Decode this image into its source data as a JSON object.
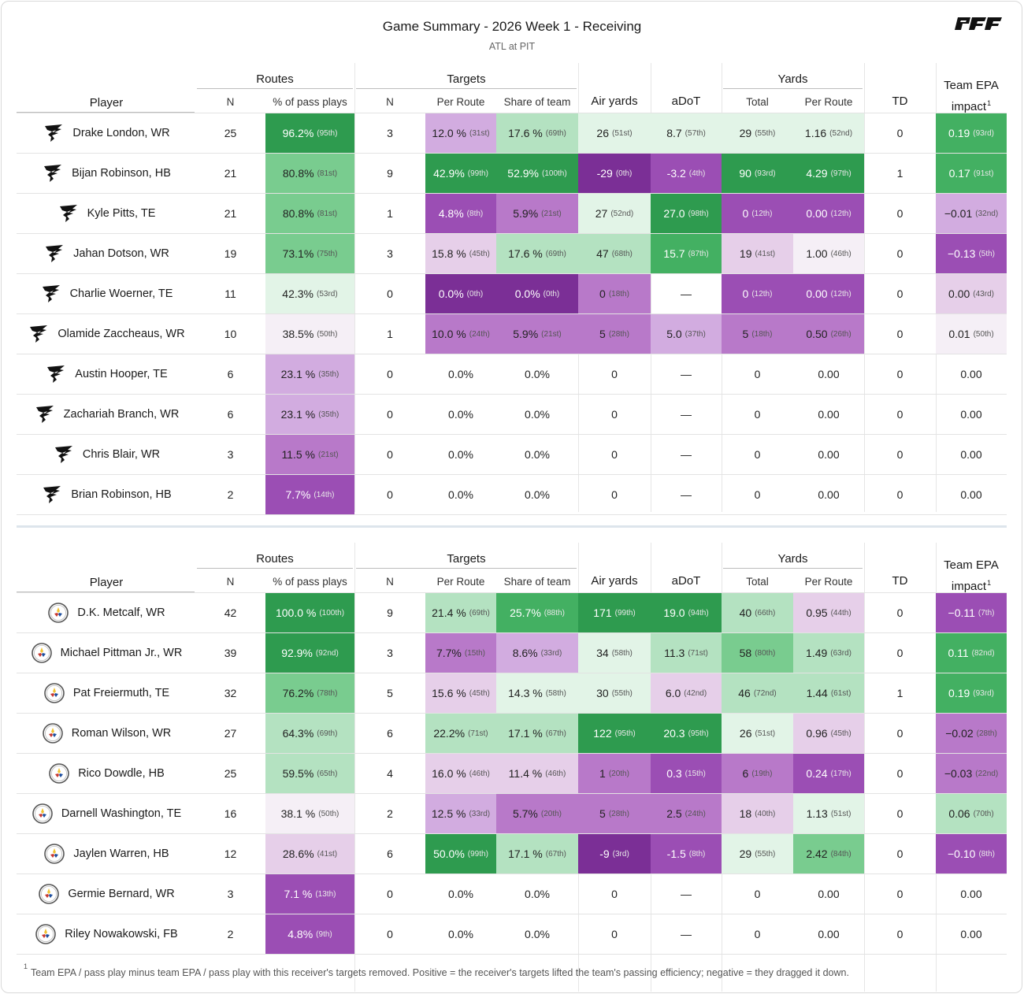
{
  "title": "Game Summary - 2026 Week 1 - Receiving",
  "subtitle": "ATL at PIT",
  "brand": "PFF",
  "headers": {
    "player": "Player",
    "routes": "Routes",
    "targets": "Targets",
    "yards": "Yards",
    "n": "N",
    "pct_pass_plays": "% of pass plays",
    "per_route": "Per Route",
    "share_of_team": "Share of team",
    "air_yards": "Air yards",
    "adot": "aDoT",
    "total": "Total",
    "td": "TD",
    "team_epa_line1": "Team EPA",
    "team_epa_line2": "impact",
    "footnote_mark": "1"
  },
  "colors": {
    "g4": "#2e9b4f",
    "g3": "#43b062",
    "g2": "#79cc8f",
    "g1": "#b4e2c1",
    "g0": "#e2f4e7",
    "n": "#f5eff6",
    "p0": "#e6cfe9",
    "p1": "#d2ace0",
    "p2": "#b879c9",
    "p3": "#9b4eb4",
    "p4": "#7b2f96"
  },
  "tables": [
    {
      "team": "ATL",
      "rows": [
        {
          "player": "Drake London, WR",
          "routes_n": "25",
          "routes_pct": {
            "v": "96.2%",
            "r": "(95th)",
            "c": "g4"
          },
          "targets_n": "3",
          "per_route": {
            "v": "12.0 %",
            "r": "(31st)",
            "c": "p1"
          },
          "share": {
            "v": "17.6 %",
            "r": "(69th)",
            "c": "g1"
          },
          "air": {
            "v": "26",
            "r": "(51st)",
            "c": "g0"
          },
          "adot": {
            "v": "8.7",
            "r": "(57th)",
            "c": "g0"
          },
          "ytot": {
            "v": "29",
            "r": "(55th)",
            "c": "g0"
          },
          "yroute": {
            "v": "1.16",
            "r": "(52nd)",
            "c": "g0"
          },
          "td": "0",
          "epa": {
            "v": "0.19",
            "r": "(93rd)",
            "c": "g3"
          }
        },
        {
          "player": "Bijan Robinson, HB",
          "routes_n": "21",
          "routes_pct": {
            "v": "80.8%",
            "r": "(81st)",
            "c": "g2"
          },
          "targets_n": "9",
          "per_route": {
            "v": "42.9%",
            "r": "(99th)",
            "c": "g4"
          },
          "share": {
            "v": "52.9%",
            "r": "(100th)",
            "c": "g4"
          },
          "air": {
            "v": "-29",
            "r": "(0th)",
            "c": "p4"
          },
          "adot": {
            "v": "-3.2",
            "r": "(4th)",
            "c": "p3"
          },
          "ytot": {
            "v": "90",
            "r": "(93rd)",
            "c": "g4"
          },
          "yroute": {
            "v": "4.29",
            "r": "(97th)",
            "c": "g4"
          },
          "td": "1",
          "epa": {
            "v": "0.17",
            "r": "(91st)",
            "c": "g3"
          }
        },
        {
          "player": "Kyle Pitts, TE",
          "routes_n": "21",
          "routes_pct": {
            "v": "80.8%",
            "r": "(81st)",
            "c": "g2"
          },
          "targets_n": "1",
          "per_route": {
            "v": "4.8%",
            "r": "(8th)",
            "c": "p3"
          },
          "share": {
            "v": "5.9%",
            "r": "(21st)",
            "c": "p2"
          },
          "air": {
            "v": "27",
            "r": "(52nd)",
            "c": "g0"
          },
          "adot": {
            "v": "27.0",
            "r": "(98th)",
            "c": "g4"
          },
          "ytot": {
            "v": "0",
            "r": "(12th)",
            "c": "p3"
          },
          "yroute": {
            "v": "0.00",
            "r": "(12th)",
            "c": "p3"
          },
          "td": "0",
          "epa": {
            "v": "−0.01",
            "r": "(32nd)",
            "c": "p1"
          }
        },
        {
          "player": "Jahan Dotson, WR",
          "routes_n": "19",
          "routes_pct": {
            "v": "73.1%",
            "r": "(75th)",
            "c": "g2"
          },
          "targets_n": "3",
          "per_route": {
            "v": "15.8 %",
            "r": "(45th)",
            "c": "p0"
          },
          "share": {
            "v": "17.6 %",
            "r": "(69th)",
            "c": "g1"
          },
          "air": {
            "v": "47",
            "r": "(68th)",
            "c": "g1"
          },
          "adot": {
            "v": "15.7",
            "r": "(87th)",
            "c": "g3"
          },
          "ytot": {
            "v": "19",
            "r": "(41st)",
            "c": "p0"
          },
          "yroute": {
            "v": "1.00",
            "r": "(46th)",
            "c": "n"
          },
          "td": "0",
          "epa": {
            "v": "−0.13",
            "r": "(5th)",
            "c": "p3"
          }
        },
        {
          "player": "Charlie Woerner, TE",
          "routes_n": "11",
          "routes_pct": {
            "v": "42.3%",
            "r": "(53rd)",
            "c": "g0"
          },
          "targets_n": "0",
          "per_route": {
            "v": "0.0%",
            "r": "(0th)",
            "c": "p4"
          },
          "share": {
            "v": "0.0%",
            "r": "(0th)",
            "c": "p4"
          },
          "air": {
            "v": "0",
            "r": "(18th)",
            "c": "p2"
          },
          "adot": {
            "v": "—",
            "r": "",
            "c": ""
          },
          "ytot": {
            "v": "0",
            "r": "(12th)",
            "c": "p3"
          },
          "yroute": {
            "v": "0.00",
            "r": "(12th)",
            "c": "p3"
          },
          "td": "0",
          "epa": {
            "v": "0.00",
            "r": "(43rd)",
            "c": "p0"
          }
        },
        {
          "player": "Olamide Zaccheaus, WR",
          "routes_n": "10",
          "routes_pct": {
            "v": "38.5%",
            "r": "(50th)",
            "c": "n"
          },
          "targets_n": "1",
          "per_route": {
            "v": "10.0 %",
            "r": "(24th)",
            "c": "p2"
          },
          "share": {
            "v": "5.9%",
            "r": "(21st)",
            "c": "p2"
          },
          "air": {
            "v": "5",
            "r": "(28th)",
            "c": "p2"
          },
          "adot": {
            "v": "5.0",
            "r": "(37th)",
            "c": "p1"
          },
          "ytot": {
            "v": "5",
            "r": "(18th)",
            "c": "p2"
          },
          "yroute": {
            "v": "0.50",
            "r": "(26th)",
            "c": "p2"
          },
          "td": "0",
          "epa": {
            "v": "0.01",
            "r": "(50th)",
            "c": "n"
          }
        },
        {
          "player": "Austin Hooper, TE",
          "routes_n": "6",
          "routes_pct": {
            "v": "23.1 %",
            "r": "(35th)",
            "c": "p1"
          },
          "targets_n": "0",
          "per_route": {
            "v": "0.0%",
            "r": "",
            "c": ""
          },
          "share": {
            "v": "0.0%",
            "r": "",
            "c": ""
          },
          "air": {
            "v": "0",
            "r": "",
            "c": ""
          },
          "adot": {
            "v": "—",
            "r": "",
            "c": ""
          },
          "ytot": {
            "v": "0",
            "r": "",
            "c": ""
          },
          "yroute": {
            "v": "0.00",
            "r": "",
            "c": ""
          },
          "td": "0",
          "epa": {
            "v": "0.00",
            "r": "",
            "c": ""
          }
        },
        {
          "player": "Zachariah Branch, WR",
          "routes_n": "6",
          "routes_pct": {
            "v": "23.1 %",
            "r": "(35th)",
            "c": "p1"
          },
          "targets_n": "0",
          "per_route": {
            "v": "0.0%",
            "r": "",
            "c": ""
          },
          "share": {
            "v": "0.0%",
            "r": "",
            "c": ""
          },
          "air": {
            "v": "0",
            "r": "",
            "c": ""
          },
          "adot": {
            "v": "—",
            "r": "",
            "c": ""
          },
          "ytot": {
            "v": "0",
            "r": "",
            "c": ""
          },
          "yroute": {
            "v": "0.00",
            "r": "",
            "c": ""
          },
          "td": "0",
          "epa": {
            "v": "0.00",
            "r": "",
            "c": ""
          }
        },
        {
          "player": "Chris Blair, WR",
          "routes_n": "3",
          "routes_pct": {
            "v": "11.5 %",
            "r": "(21st)",
            "c": "p2"
          },
          "targets_n": "0",
          "per_route": {
            "v": "0.0%",
            "r": "",
            "c": ""
          },
          "share": {
            "v": "0.0%",
            "r": "",
            "c": ""
          },
          "air": {
            "v": "0",
            "r": "",
            "c": ""
          },
          "adot": {
            "v": "—",
            "r": "",
            "c": ""
          },
          "ytot": {
            "v": "0",
            "r": "",
            "c": ""
          },
          "yroute": {
            "v": "0.00",
            "r": "",
            "c": ""
          },
          "td": "0",
          "epa": {
            "v": "0.00",
            "r": "",
            "c": ""
          }
        },
        {
          "player": "Brian Robinson, HB",
          "routes_n": "2",
          "routes_pct": {
            "v": "7.7%",
            "r": "(14th)",
            "c": "p3"
          },
          "targets_n": "0",
          "per_route": {
            "v": "0.0%",
            "r": "",
            "c": ""
          },
          "share": {
            "v": "0.0%",
            "r": "",
            "c": ""
          },
          "air": {
            "v": "0",
            "r": "",
            "c": ""
          },
          "adot": {
            "v": "—",
            "r": "",
            "c": ""
          },
          "ytot": {
            "v": "0",
            "r": "",
            "c": ""
          },
          "yroute": {
            "v": "0.00",
            "r": "",
            "c": ""
          },
          "td": "0",
          "epa": {
            "v": "0.00",
            "r": "",
            "c": ""
          }
        }
      ]
    },
    {
      "team": "PIT",
      "rows": [
        {
          "player": "D.K. Metcalf, WR",
          "routes_n": "42",
          "routes_pct": {
            "v": "100.0 %",
            "r": "(100th)",
            "c": "g4"
          },
          "targets_n": "9",
          "per_route": {
            "v": "21.4 %",
            "r": "(69th)",
            "c": "g1"
          },
          "share": {
            "v": "25.7%",
            "r": "(88th)",
            "c": "g3"
          },
          "air": {
            "v": "171",
            "r": "(99th)",
            "c": "g4"
          },
          "adot": {
            "v": "19.0",
            "r": "(94th)",
            "c": "g4"
          },
          "ytot": {
            "v": "40",
            "r": "(66th)",
            "c": "g1"
          },
          "yroute": {
            "v": "0.95",
            "r": "(44th)",
            "c": "p0"
          },
          "td": "0",
          "epa": {
            "v": "−0.11",
            "r": "(7th)",
            "c": "p3"
          }
        },
        {
          "player": "Michael Pittman Jr., WR",
          "routes_n": "39",
          "routes_pct": {
            "v": "92.9%",
            "r": "(92nd)",
            "c": "g4"
          },
          "targets_n": "3",
          "per_route": {
            "v": "7.7%",
            "r": "(15th)",
            "c": "p2"
          },
          "share": {
            "v": "8.6%",
            "r": "(33rd)",
            "c": "p1"
          },
          "air": {
            "v": "34",
            "r": "(58th)",
            "c": "g0"
          },
          "adot": {
            "v": "11.3",
            "r": "(71st)",
            "c": "g1"
          },
          "ytot": {
            "v": "58",
            "r": "(80th)",
            "c": "g2"
          },
          "yroute": {
            "v": "1.49",
            "r": "(63rd)",
            "c": "g1"
          },
          "td": "0",
          "epa": {
            "v": "0.11",
            "r": "(82nd)",
            "c": "g3"
          }
        },
        {
          "player": "Pat Freiermuth, TE",
          "routes_n": "32",
          "routes_pct": {
            "v": "76.2%",
            "r": "(78th)",
            "c": "g2"
          },
          "targets_n": "5",
          "per_route": {
            "v": "15.6 %",
            "r": "(45th)",
            "c": "p0"
          },
          "share": {
            "v": "14.3 %",
            "r": "(58th)",
            "c": "g0"
          },
          "air": {
            "v": "30",
            "r": "(55th)",
            "c": "g0"
          },
          "adot": {
            "v": "6.0",
            "r": "(42nd)",
            "c": "p0"
          },
          "ytot": {
            "v": "46",
            "r": "(72nd)",
            "c": "g1"
          },
          "yroute": {
            "v": "1.44",
            "r": "(61st)",
            "c": "g1"
          },
          "td": "1",
          "epa": {
            "v": "0.19",
            "r": "(93rd)",
            "c": "g3"
          }
        },
        {
          "player": "Roman Wilson, WR",
          "routes_n": "27",
          "routes_pct": {
            "v": "64.3%",
            "r": "(69th)",
            "c": "g1"
          },
          "targets_n": "6",
          "per_route": {
            "v": "22.2%",
            "r": "(71st)",
            "c": "g1"
          },
          "share": {
            "v": "17.1 %",
            "r": "(67th)",
            "c": "g1"
          },
          "air": {
            "v": "122",
            "r": "(95th)",
            "c": "g4"
          },
          "adot": {
            "v": "20.3",
            "r": "(95th)",
            "c": "g4"
          },
          "ytot": {
            "v": "26",
            "r": "(51st)",
            "c": "g0"
          },
          "yroute": {
            "v": "0.96",
            "r": "(45th)",
            "c": "p0"
          },
          "td": "0",
          "epa": {
            "v": "−0.02",
            "r": "(28th)",
            "c": "p2"
          }
        },
        {
          "player": "Rico Dowdle, HB",
          "routes_n": "25",
          "routes_pct": {
            "v": "59.5%",
            "r": "(65th)",
            "c": "g1"
          },
          "targets_n": "4",
          "per_route": {
            "v": "16.0 %",
            "r": "(46th)",
            "c": "p0"
          },
          "share": {
            "v": "11.4 %",
            "r": "(46th)",
            "c": "p0"
          },
          "air": {
            "v": "1",
            "r": "(20th)",
            "c": "p2"
          },
          "adot": {
            "v": "0.3",
            "r": "(15th)",
            "c": "p3"
          },
          "ytot": {
            "v": "6",
            "r": "(19th)",
            "c": "p2"
          },
          "yroute": {
            "v": "0.24",
            "r": "(17th)",
            "c": "p3"
          },
          "td": "0",
          "epa": {
            "v": "−0.03",
            "r": "(22nd)",
            "c": "p2"
          }
        },
        {
          "player": "Darnell Washington, TE",
          "routes_n": "16",
          "routes_pct": {
            "v": "38.1 %",
            "r": "(50th)",
            "c": "n"
          },
          "targets_n": "2",
          "per_route": {
            "v": "12.5 %",
            "r": "(33rd)",
            "c": "p1"
          },
          "share": {
            "v": "5.7%",
            "r": "(20th)",
            "c": "p2"
          },
          "air": {
            "v": "5",
            "r": "(28th)",
            "c": "p2"
          },
          "adot": {
            "v": "2.5",
            "r": "(24th)",
            "c": "p2"
          },
          "ytot": {
            "v": "18",
            "r": "(40th)",
            "c": "p0"
          },
          "yroute": {
            "v": "1.13",
            "r": "(51st)",
            "c": "g0"
          },
          "td": "0",
          "epa": {
            "v": "0.06",
            "r": "(70th)",
            "c": "g1"
          }
        },
        {
          "player": "Jaylen Warren, HB",
          "routes_n": "12",
          "routes_pct": {
            "v": "28.6%",
            "r": "(41st)",
            "c": "p0"
          },
          "targets_n": "6",
          "per_route": {
            "v": "50.0%",
            "r": "(99th)",
            "c": "g4"
          },
          "share": {
            "v": "17.1 %",
            "r": "(67th)",
            "c": "g1"
          },
          "air": {
            "v": "-9",
            "r": "(3rd)",
            "c": "p4"
          },
          "adot": {
            "v": "-1.5",
            "r": "(8th)",
            "c": "p3"
          },
          "ytot": {
            "v": "29",
            "r": "(55th)",
            "c": "g0"
          },
          "yroute": {
            "v": "2.42",
            "r": "(84th)",
            "c": "g2"
          },
          "td": "0",
          "epa": {
            "v": "−0.10",
            "r": "(8th)",
            "c": "p3"
          }
        },
        {
          "player": "Germie Bernard, WR",
          "routes_n": "3",
          "routes_pct": {
            "v": "7.1 %",
            "r": "(13th)",
            "c": "p3"
          },
          "targets_n": "0",
          "per_route": {
            "v": "0.0%",
            "r": "",
            "c": ""
          },
          "share": {
            "v": "0.0%",
            "r": "",
            "c": ""
          },
          "air": {
            "v": "0",
            "r": "",
            "c": ""
          },
          "adot": {
            "v": "—",
            "r": "",
            "c": ""
          },
          "ytot": {
            "v": "0",
            "r": "",
            "c": ""
          },
          "yroute": {
            "v": "0.00",
            "r": "",
            "c": ""
          },
          "td": "0",
          "epa": {
            "v": "0.00",
            "r": "",
            "c": ""
          }
        },
        {
          "player": "Riley Nowakowski, FB",
          "routes_n": "2",
          "routes_pct": {
            "v": "4.8%",
            "r": "(9th)",
            "c": "p3"
          },
          "targets_n": "0",
          "per_route": {
            "v": "0.0%",
            "r": "",
            "c": ""
          },
          "share": {
            "v": "0.0%",
            "r": "",
            "c": ""
          },
          "air": {
            "v": "0",
            "r": "",
            "c": ""
          },
          "adot": {
            "v": "—",
            "r": "",
            "c": ""
          },
          "ytot": {
            "v": "0",
            "r": "",
            "c": ""
          },
          "yroute": {
            "v": "0.00",
            "r": "",
            "c": ""
          },
          "td": "0",
          "epa": {
            "v": "0.00",
            "r": "",
            "c": ""
          }
        }
      ]
    }
  ],
  "footnote_mark": "1",
  "footnote": "Team EPA / pass play minus team EPA / pass play with this receiver's targets removed. Positive = the receiver's targets lifted the team's passing efficiency; negative = they dragged it down."
}
